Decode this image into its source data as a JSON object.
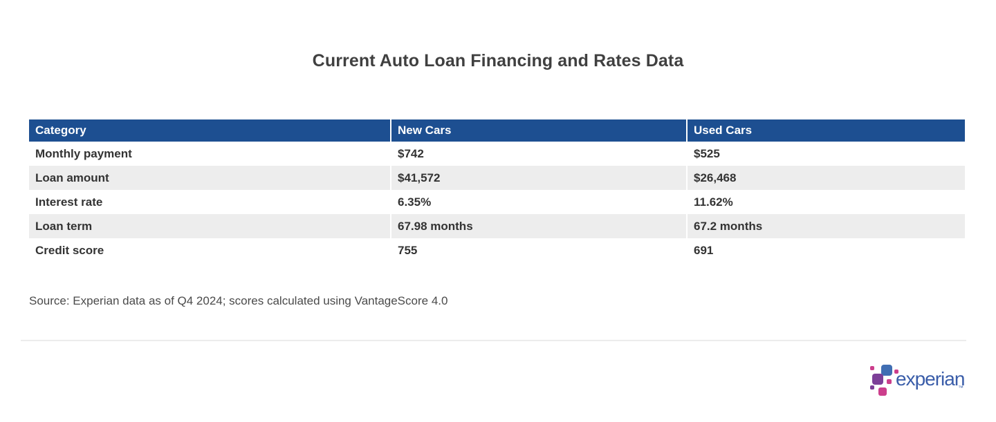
{
  "page": {
    "title": "Current Auto Loan Financing and Rates Data",
    "source_note": "Source: Experian data as of Q4 2024; scores calculated using VantageScore 4.0"
  },
  "chart_data": {
    "type": "table",
    "title": "Current Auto Loan Financing and Rates Data",
    "columns": [
      "Category",
      "New Cars",
      "Used Cars"
    ],
    "rows": [
      [
        "Monthly payment",
        "$742",
        "$525"
      ],
      [
        "Loan amount",
        "$41,572",
        "$26,468"
      ],
      [
        "Interest rate",
        "6.35%",
        "11.62%"
      ],
      [
        "Loan term",
        "67.98 months",
        "67.2 months"
      ],
      [
        "Credit score",
        "755",
        "691"
      ]
    ],
    "numeric": {
      "monthly_payment": {
        "new_cars": 742,
        "used_cars": 525
      },
      "loan_amount": {
        "new_cars": 41572,
        "used_cars": 26468
      },
      "interest_rate_pct": {
        "new_cars": 6.35,
        "used_cars": 11.62
      },
      "loan_term_months": {
        "new_cars": 67.98,
        "used_cars": 67.2
      },
      "credit_score": {
        "new_cars": 755,
        "used_cars": 691
      }
    },
    "source": "Source: Experian data as of Q4 2024; scores calculated using VantageScore 4.0",
    "layout": {
      "striped_rows": [
        1,
        3
      ],
      "header_position": "top"
    }
  },
  "logo": {
    "text": "experian",
    "trademark": "™"
  },
  "colors": {
    "header_bg": "#1d4f91",
    "header_text": "#ffffff",
    "row_stripe": "#ededed",
    "body_text": "#333333",
    "title_text": "#404040",
    "logo_blue": "#406eb3",
    "logo_purple": "#7d3f98",
    "logo_magenta": "#cc3e8c",
    "logo_wordmark": "#3a5da9"
  }
}
